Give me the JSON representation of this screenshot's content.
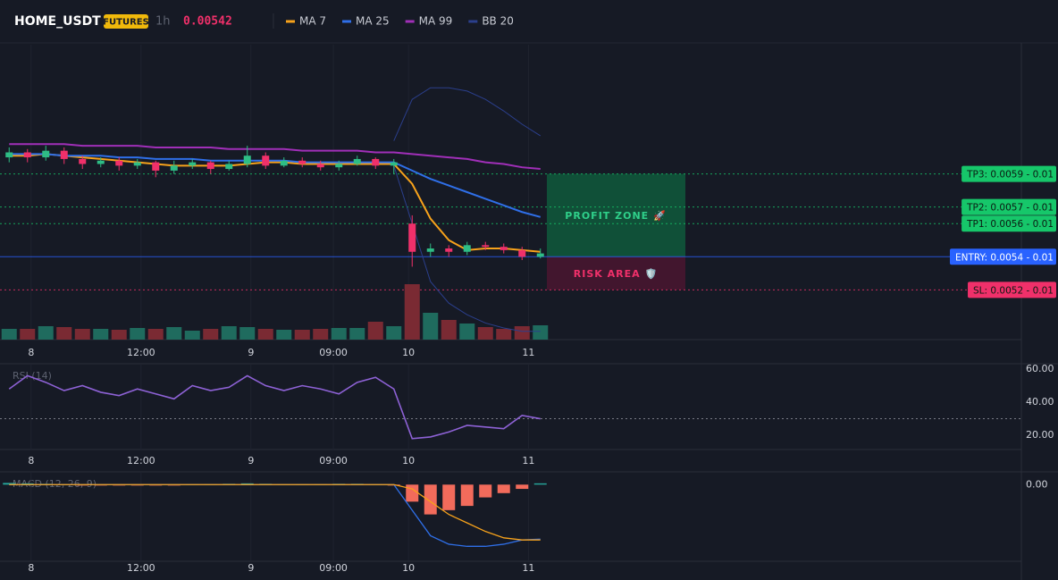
{
  "chart_data": {
    "type": "candlestick",
    "title": "HOME_USDT",
    "badge": "FUTURES",
    "interval": "1h",
    "price": 0.00542,
    "x": [
      1,
      3,
      5,
      7,
      9,
      11,
      13,
      15,
      17,
      19,
      21,
      23,
      25,
      27,
      29,
      31,
      33,
      35,
      37,
      39,
      41,
      43,
      45,
      47,
      49,
      51,
      53,
      55,
      57,
      59
    ],
    "open": [
      0.006,
      0.00603,
      0.006,
      0.00604,
      0.00599,
      0.00596,
      0.00598,
      0.00595,
      0.00597,
      0.00592,
      0.00595,
      0.00597,
      0.00593,
      0.00596,
      0.00601,
      0.00595,
      0.00598,
      0.00596,
      0.00594,
      0.00596,
      0.00599,
      0.00595,
      0.0056,
      0.00543,
      0.00545,
      0.00543,
      0.00547,
      0.00546,
      0.00544,
      0.0054
    ],
    "high": [
      0.00606,
      0.00605,
      0.00607,
      0.00606,
      0.00601,
      0.006,
      0.006,
      0.00599,
      0.00598,
      0.00598,
      0.00599,
      0.00598,
      0.00598,
      0.00607,
      0.00603,
      0.006,
      0.006,
      0.00598,
      0.00598,
      0.00601,
      0.006,
      0.00599,
      0.00565,
      0.00548,
      0.00547,
      0.00549,
      0.00549,
      0.00548,
      0.00546,
      0.00545
    ],
    "low": [
      0.00597,
      0.00597,
      0.00598,
      0.00596,
      0.00593,
      0.00594,
      0.00592,
      0.00593,
      0.00588,
      0.0059,
      0.00593,
      0.0059,
      0.00592,
      0.00594,
      0.00593,
      0.00594,
      0.00594,
      0.00592,
      0.00592,
      0.00595,
      0.00593,
      0.0059,
      0.00534,
      0.0054,
      0.0054,
      0.00541,
      0.00544,
      0.00542,
      0.00538,
      0.00539
    ],
    "close": [
      0.00603,
      0.006,
      0.00604,
      0.00599,
      0.00596,
      0.00598,
      0.00595,
      0.00597,
      0.00592,
      0.00595,
      0.00597,
      0.00593,
      0.00596,
      0.00601,
      0.00595,
      0.00598,
      0.00596,
      0.00594,
      0.00596,
      0.00599,
      0.00595,
      0.00597,
      0.00543,
      0.00545,
      0.00543,
      0.00547,
      0.00546,
      0.00544,
      0.0054,
      0.00542
    ],
    "up_color": "#2ebd85",
    "down_color": "#f0306a",
    "xlim": [
      0,
      60
    ],
    "ylim": [
      0.0049,
      0.00668
    ],
    "xticks": [
      {
        "value": 3.4,
        "label": "8"
      },
      {
        "value": 15.4,
        "label": "12:00"
      },
      {
        "value": 27.4,
        "label": "9"
      },
      {
        "value": 36.4,
        "label": "09:00"
      },
      {
        "value": 44.6,
        "label": "10"
      },
      {
        "value": 57.7,
        "label": "11"
      }
    ],
    "grid": true,
    "series": [
      {
        "name": "MA 7",
        "color": "#f7a21b",
        "values": [
          0.00601,
          0.00601,
          0.00602,
          0.00601,
          0.006,
          0.00599,
          0.00598,
          0.00597,
          0.00596,
          0.00595,
          0.00595,
          0.00595,
          0.00595,
          0.00596,
          0.00597,
          0.00597,
          0.00596,
          0.00596,
          0.00596,
          0.00596,
          0.00596,
          0.00596,
          0.00584,
          0.00563,
          0.0055,
          0.00544,
          0.00545,
          0.00545,
          0.00544,
          0.00543
        ]
      },
      {
        "name": "MA 25",
        "color": "#2f6fe8",
        "values": [
          0.00602,
          0.00602,
          0.00602,
          0.00601,
          0.00601,
          0.00601,
          0.006,
          0.006,
          0.00599,
          0.00599,
          0.00599,
          0.00598,
          0.00598,
          0.00598,
          0.00598,
          0.00598,
          0.00597,
          0.00597,
          0.00597,
          0.00597,
          0.00597,
          0.00597,
          0.00592,
          0.00587,
          0.00583,
          0.00579,
          0.00575,
          0.00571,
          0.00567,
          0.00564
        ]
      },
      {
        "name": "MA 99",
        "color": "#a02fb8",
        "values": [
          0.00608,
          0.00608,
          0.00608,
          0.00608,
          0.00607,
          0.00607,
          0.00607,
          0.00607,
          0.00606,
          0.00606,
          0.00606,
          0.00606,
          0.00605,
          0.00605,
          0.00605,
          0.00605,
          0.00604,
          0.00604,
          0.00604,
          0.00604,
          0.00603,
          0.00603,
          0.00602,
          0.00601,
          0.006,
          0.00599,
          0.00597,
          0.00596,
          0.00594,
          0.00593
        ]
      },
      {
        "name": "BB 20",
        "color": "#2b3f8c",
        "upper": [
          null,
          null,
          null,
          null,
          null,
          null,
          null,
          null,
          null,
          null,
          null,
          null,
          null,
          null,
          null,
          null,
          null,
          null,
          null,
          null,
          null,
          0.0061,
          0.00635,
          0.00642,
          0.00642,
          0.0064,
          0.00635,
          0.00628,
          0.0062,
          0.00613
        ],
        "lower": [
          null,
          null,
          null,
          null,
          null,
          null,
          null,
          null,
          null,
          null,
          null,
          null,
          null,
          null,
          null,
          null,
          null,
          null,
          null,
          null,
          null,
          0.00595,
          0.0056,
          0.00525,
          0.00512,
          0.00505,
          0.005,
          0.00497,
          0.00495,
          0.00495
        ]
      }
    ],
    "volume": {
      "values": [
        12,
        12,
        15,
        14,
        12,
        12,
        11,
        13,
        12,
        14,
        10,
        12,
        15,
        14,
        12,
        11,
        11,
        12,
        13,
        13,
        20,
        15,
        62,
        30,
        22,
        18,
        14,
        12,
        15,
        16
      ],
      "ylim": [
        0,
        70
      ],
      "up_color": "#1f6b5e",
      "down_color": "#7a2a33"
    },
    "levels": [
      {
        "value": 0.0059,
        "label": "TP3: 0.0059 - 0.01",
        "color": "#16c76a",
        "style": "dotted"
      },
      {
        "value": 0.0057,
        "label": "TP2: 0.0057 - 0.01",
        "color": "#16c76a",
        "style": "dotted"
      },
      {
        "value": 0.0056,
        "label": "TP1: 0.0056 - 0.01",
        "color": "#16c76a",
        "style": "dotted"
      },
      {
        "value": 0.0054,
        "label": "ENTRY: 0.0054 - 0.01",
        "color": "#2962ff",
        "style": "solid"
      },
      {
        "value": 0.0052,
        "label": "SL: 0.0052 - 0.01",
        "color": "#f0306a",
        "style": "dotted"
      }
    ],
    "zones": [
      {
        "label": "PROFIT ZONE 🚀",
        "from": 0.0054,
        "to": 0.0059,
        "color": "#0f5a3c",
        "text_color": "#2fd08a"
      },
      {
        "label": "RISK AREA 🛡️",
        "from": 0.0052,
        "to": 0.0054,
        "color": "#4a1630",
        "text_color": "#f0306a"
      }
    ],
    "rsi": {
      "title": "RSI (14)",
      "color": "#8e62d6",
      "values": [
        48,
        56,
        52,
        47,
        50,
        46,
        44,
        48,
        45,
        42,
        50,
        47,
        49,
        56,
        50,
        47,
        50,
        48,
        45,
        52,
        55,
        48,
        18,
        19,
        22,
        26,
        25,
        24,
        32,
        30
      ],
      "ylim": [
        11.4,
        62.7
      ],
      "yticks": [
        {
          "value": 20,
          "label": "20.00"
        },
        {
          "value": 40,
          "label": "40.00"
        },
        {
          "value": 60,
          "label": "60.00"
        }
      ],
      "level": 30
    },
    "macd": {
      "title": "MACD (12, 26, 9)",
      "macd_color": "#2f6fe8",
      "signal_color": "#f7a21b",
      "hist_up": "#26a69a",
      "hist_down": "#f26b5b",
      "macd": [
        0,
        0,
        0,
        0,
        0,
        0,
        0,
        0,
        0,
        0,
        0,
        0,
        0,
        0,
        0,
        0,
        0,
        0,
        0,
        0,
        0,
        0,
        -6e-05,
        -0.00012,
        -0.00014,
        -0.000145,
        -0.000145,
        -0.00014,
        -0.00013,
        -0.000128
      ],
      "signal": [
        0,
        0,
        0,
        0,
        0,
        0,
        0,
        0,
        0,
        0,
        0,
        0,
        0,
        0,
        0,
        0,
        0,
        0,
        0,
        0,
        0,
        0,
        -1e-05,
        -4e-05,
        -7e-05,
        -9e-05,
        -0.00011,
        -0.000125,
        -0.00013,
        -0.00013
      ],
      "histogram": [
        4e-06,
        3e-06,
        2e-06,
        1e-06,
        -2e-06,
        -1e-06,
        -2e-06,
        -1e-06,
        -2e-06,
        -1e-06,
        1e-06,
        1e-06,
        2e-06,
        3e-06,
        2e-06,
        1e-06,
        1e-06,
        1e-06,
        2e-06,
        2e-06,
        1e-06,
        -2e-06,
        -4e-05,
        -7e-05,
        -6e-05,
        -5e-05,
        -3e-05,
        -2e-05,
        -1e-05,
        3e-06
      ],
      "ylim": [
        -0.00018,
        3e-05
      ],
      "yticks": [
        {
          "value": 0,
          "label": "0.00"
        }
      ]
    }
  }
}
